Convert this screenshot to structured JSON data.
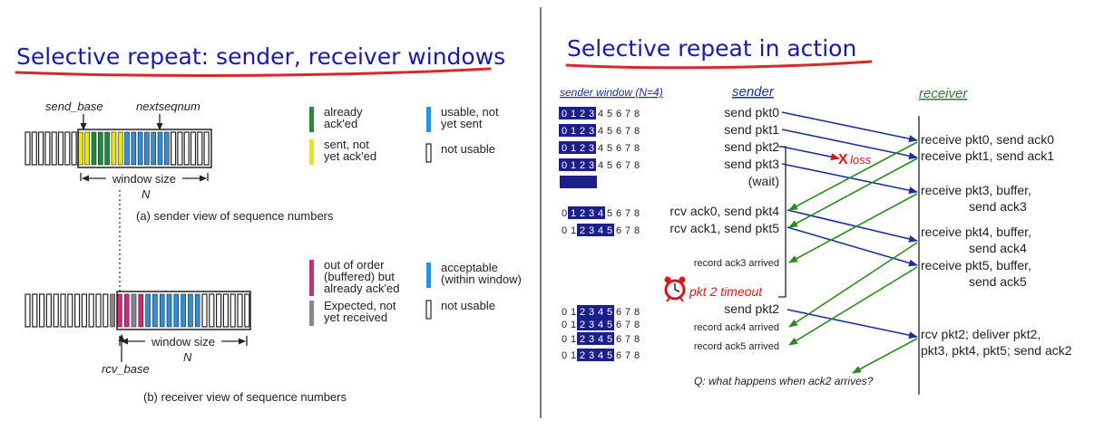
{
  "left": {
    "title": "Selective repeat: sender, receiver windows",
    "sender": {
      "send_base_label": "send_base",
      "nextseqnum_label": "nextseqnum",
      "window_size_label": "window size",
      "n_label": "N",
      "caption": "(a) sender view of sequence numbers",
      "legend": [
        {
          "label": [
            "already",
            "ack'ed"
          ],
          "color": "#1f8a3c"
        },
        {
          "label": [
            "sent, not",
            "yet ack'ed"
          ],
          "color": "#e8e416"
        },
        {
          "label": [
            "usable, not",
            "yet sent"
          ],
          "color": "#2e8fd8"
        },
        {
          "label": [
            "not usable"
          ],
          "color": "none"
        }
      ],
      "slots": [
        "none",
        "none",
        "none",
        "none",
        "none",
        "none",
        "none",
        "none",
        "yellow",
        "yellow",
        "green",
        "green",
        "green",
        "yellow",
        "yellow",
        "blue",
        "blue",
        "blue",
        "blue",
        "blue",
        "blue",
        "blue",
        "none",
        "none",
        "none",
        "none",
        "none",
        "none"
      ]
    },
    "receiver": {
      "rcv_base_label": "rcv_base",
      "window_size_label": "window size",
      "n_label": "N",
      "caption": "(b) receiver view of sequence numbers",
      "legend": [
        {
          "label": [
            "out of order",
            "(buffered) but",
            "already ack'ed"
          ],
          "color": "#d6287a"
        },
        {
          "label": [
            "acceptable",
            "(within window)"
          ],
          "color": "#2e8fd8"
        },
        {
          "label": [
            "Expected, not",
            "yet received"
          ],
          "color": "#888888"
        },
        {
          "label": [
            "not usable"
          ],
          "color": "none"
        }
      ],
      "slots": [
        "none",
        "none",
        "none",
        "none",
        "none",
        "none",
        "none",
        "none",
        "none",
        "none",
        "none",
        "none",
        "gray",
        "magenta",
        "magenta",
        "gray",
        "magenta",
        "blue",
        "blue",
        "blue",
        "blue",
        "blue",
        "blue",
        "blue",
        "blue",
        "none",
        "none",
        "none",
        "none",
        "none",
        "none",
        "none"
      ]
    }
  },
  "right": {
    "title": "Selective repeat in action",
    "header_window": "sender window (N=4)",
    "header_sender": "sender",
    "header_receiver": "receiver",
    "window_rows": [
      {
        "digits": [
          "0",
          "1",
          "2",
          "3",
          "4",
          "5",
          "6",
          "7",
          "8"
        ],
        "hi": [
          0,
          3
        ]
      },
      {
        "digits": [
          "0",
          "1",
          "2",
          "3",
          "4",
          "5",
          "6",
          "7",
          "8"
        ],
        "hi": [
          0,
          3
        ]
      },
      {
        "digits": [
          "0",
          "1",
          "2",
          "3",
          "4",
          "5",
          "6",
          "7",
          "8"
        ],
        "hi": [
          0,
          3
        ]
      },
      {
        "digits": [
          "0",
          "1",
          "2",
          "3",
          "4",
          "5",
          "6",
          "7",
          "8"
        ],
        "hi": [
          0,
          3
        ]
      },
      {
        "digits": [],
        "hi": "bar"
      },
      {
        "digits": [
          "0",
          "1",
          "2",
          "3",
          "4",
          "5",
          "6",
          "7",
          "8"
        ],
        "hi": [
          1,
          4
        ]
      },
      {
        "digits": [
          "0",
          "1",
          "2",
          "3",
          "4",
          "5",
          "6",
          "7",
          "8"
        ],
        "hi": [
          2,
          5
        ]
      },
      {
        "digits": [
          "0",
          "1",
          "2",
          "3",
          "4",
          "5",
          "6",
          "7",
          "8"
        ],
        "hi": [
          2,
          5
        ]
      },
      {
        "digits": [
          "0",
          "1",
          "2",
          "3",
          "4",
          "5",
          "6",
          "7",
          "8"
        ],
        "hi": [
          2,
          5
        ]
      },
      {
        "digits": [
          "0",
          "1",
          "2",
          "3",
          "4",
          "5",
          "6",
          "7",
          "8"
        ],
        "hi": [
          2,
          5
        ]
      },
      {
        "digits": [
          "0",
          "1",
          "2",
          "3",
          "4",
          "5",
          "6",
          "7",
          "8"
        ],
        "hi": [
          2,
          5
        ]
      }
    ],
    "sender_events": [
      {
        "text": "send  pkt0",
        "size": "l"
      },
      {
        "text": "send  pkt1",
        "size": "l"
      },
      {
        "text": "send  pkt2",
        "size": "l"
      },
      {
        "text": "send  pkt3",
        "size": "l"
      },
      {
        "text": "(wait)",
        "size": "l"
      },
      {
        "text": "rcv ack0, send pkt4",
        "size": "l"
      },
      {
        "text": "rcv ack1, send pkt5",
        "size": "l"
      },
      {
        "text": "record ack3 arrived",
        "size": "s"
      },
      {
        "text": "send  pkt2",
        "size": "l"
      },
      {
        "text": "record ack4 arrived",
        "size": "s"
      },
      {
        "text": "record ack5 arrived",
        "size": "s"
      }
    ],
    "timeout_label": "pkt 2 timeout",
    "loss_mark": "X",
    "loss_label": "loss",
    "receiver_events": [
      [
        "receive pkt0, send ack0"
      ],
      [
        "receive pkt1, send ack1"
      ],
      [
        "receive pkt3, buffer,",
        "send ack3"
      ],
      [
        "receive pkt4, buffer,",
        "send ack4"
      ],
      [
        "receive pkt5, buffer,",
        "send ack5"
      ],
      [
        "rcv pkt2; deliver pkt2,",
        "pkt3, pkt4, pkt5; send ack2"
      ]
    ],
    "question": "Q: what happens when ack2 arrives?"
  },
  "colors": {
    "title_text": "#1a1aa8",
    "title_underline": "#d42a2a",
    "window_highlight": "#1c1f8a",
    "data_arrow": "#1c2f9a",
    "ack_arrow": "#2a8a1a",
    "loss": "#e01818",
    "header_blue": "#1c2f9a",
    "receiver_header": "#2f7a2f"
  }
}
